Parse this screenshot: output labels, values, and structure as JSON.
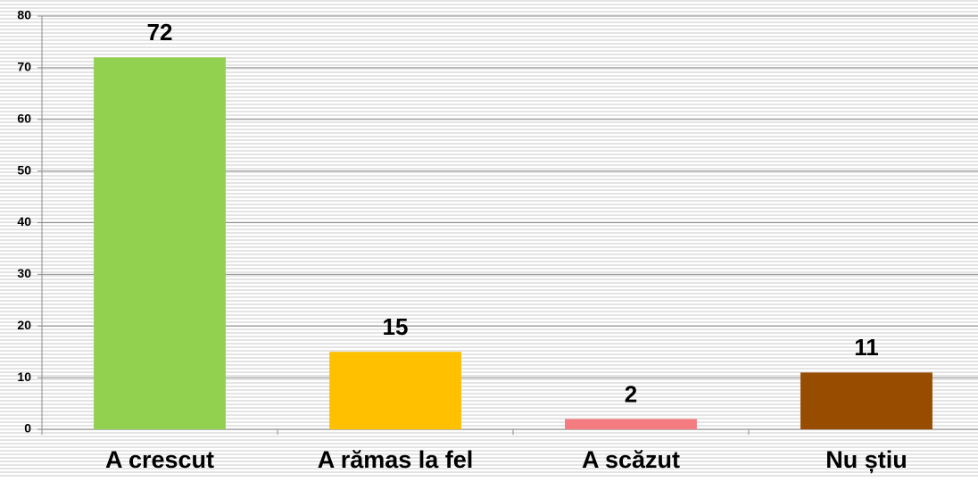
{
  "chart_data": {
    "type": "bar",
    "categories": [
      "A crescut",
      "A rămas la fel",
      "A scăzut",
      "Nu știu"
    ],
    "values": [
      72,
      15,
      2,
      11
    ],
    "colors": [
      "#92d050",
      "#ffc000",
      "#f47b80",
      "#984c00"
    ],
    "ylim": [
      0,
      80
    ],
    "yticks": [
      0,
      10,
      20,
      30,
      40,
      50,
      60,
      70,
      80
    ],
    "grid": true
  }
}
